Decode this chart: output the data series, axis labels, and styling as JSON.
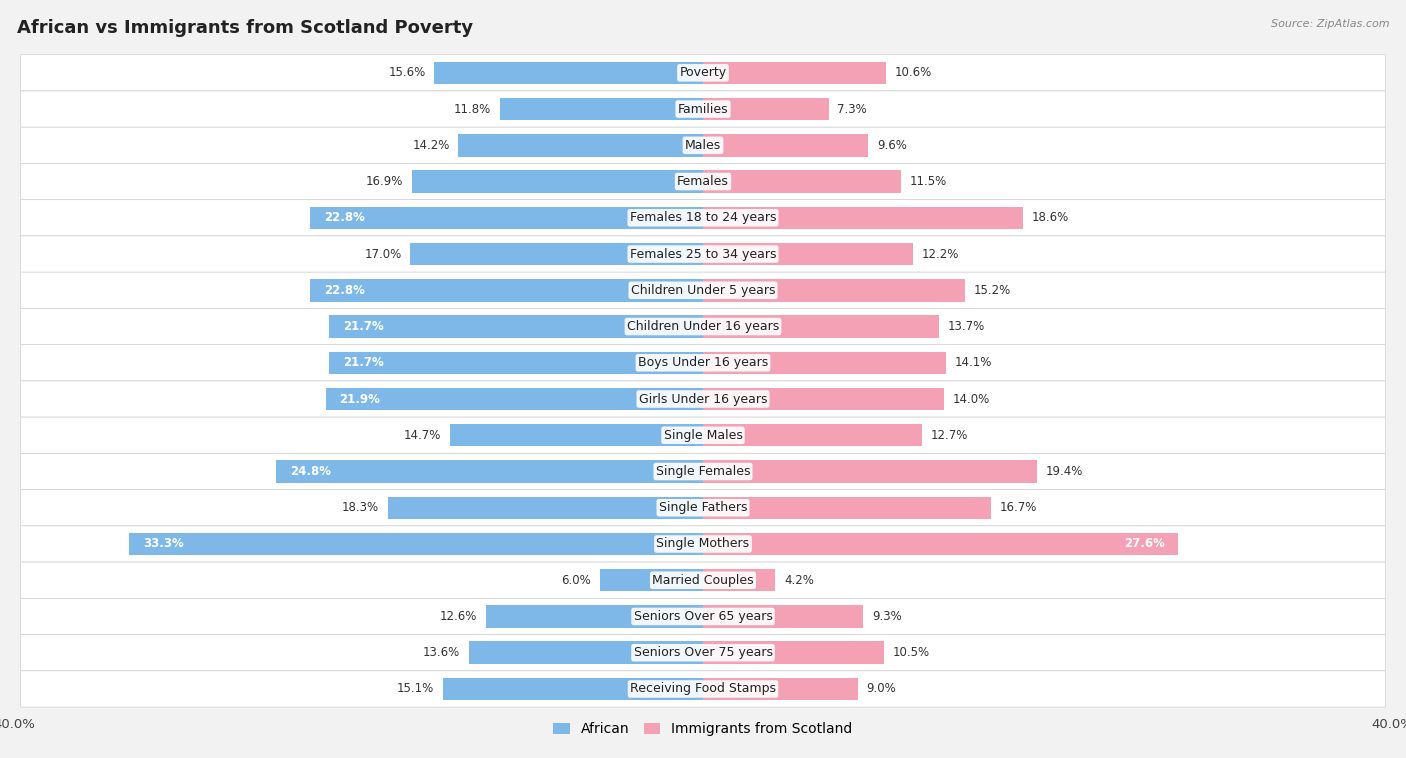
{
  "title": "African vs Immigrants from Scotland Poverty",
  "source": "Source: ZipAtlas.com",
  "categories": [
    "Poverty",
    "Families",
    "Males",
    "Females",
    "Females 18 to 24 years",
    "Females 25 to 34 years",
    "Children Under 5 years",
    "Children Under 16 years",
    "Boys Under 16 years",
    "Girls Under 16 years",
    "Single Males",
    "Single Females",
    "Single Fathers",
    "Single Mothers",
    "Married Couples",
    "Seniors Over 65 years",
    "Seniors Over 75 years",
    "Receiving Food Stamps"
  ],
  "african": [
    15.6,
    11.8,
    14.2,
    16.9,
    22.8,
    17.0,
    22.8,
    21.7,
    21.7,
    21.9,
    14.7,
    24.8,
    18.3,
    33.3,
    6.0,
    12.6,
    13.6,
    15.1
  ],
  "scotland": [
    10.6,
    7.3,
    9.6,
    11.5,
    18.6,
    12.2,
    15.2,
    13.7,
    14.1,
    14.0,
    12.7,
    19.4,
    16.7,
    27.6,
    4.2,
    9.3,
    10.5,
    9.0
  ],
  "african_color": "#7db8e8",
  "scotland_color": "#f4a0b5",
  "background_color": "#f2f2f2",
  "row_bg_color": "#ffffff",
  "axis_limit": 40.0,
  "bar_height": 0.62,
  "label_fontsize": 9.0,
  "value_fontsize": 8.5,
  "title_fontsize": 13,
  "legend_labels": [
    "African",
    "Immigrants from Scotland"
  ],
  "inside_threshold": 20.0
}
